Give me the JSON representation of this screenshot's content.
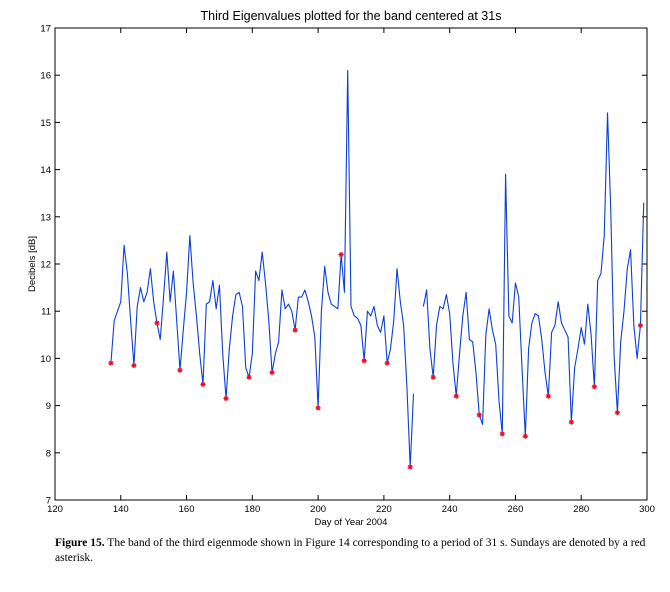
{
  "chart_data": {
    "type": "line",
    "title": "Third Eigenvalues plotted for the band centered at 31s",
    "xlabel": "Day of Year 2004",
    "ylabel": "Decibels [dB]",
    "xlim": [
      120,
      300
    ],
    "ylim": [
      7,
      17
    ],
    "xticks": [
      "120",
      "140",
      "160",
      "180",
      "200",
      "220",
      "240",
      "260",
      "280",
      "300"
    ],
    "yticks": [
      "7",
      "8",
      "9",
      "10",
      "11",
      "12",
      "13",
      "14",
      "15",
      "16",
      "17"
    ],
    "grid": false,
    "line_color": "#0b3fd6",
    "marker_color": "#e8102a",
    "series": [
      {
        "values_x": [
          137,
          138,
          140,
          141,
          142,
          143,
          144,
          145,
          146,
          147,
          148,
          149,
          150,
          151,
          152,
          153,
          154,
          155,
          156,
          157,
          158,
          159,
          160,
          161,
          162,
          163,
          164,
          165,
          166,
          167,
          168,
          169,
          170,
          171,
          172,
          173,
          174,
          175,
          176,
          177,
          178,
          179,
          180,
          181,
          182,
          183,
          184,
          185,
          186,
          187,
          188,
          189,
          190,
          191,
          192,
          193,
          194,
          195,
          196,
          197,
          198,
          199,
          200,
          201,
          202,
          203,
          204,
          205,
          206,
          207,
          208,
          209,
          210,
          211,
          212,
          213,
          214,
          215,
          216,
          217,
          218,
          219,
          220,
          221,
          222,
          223,
          224,
          225,
          226,
          227,
          228,
          229
        ],
        "values_y": [
          9.9,
          10.8,
          11.2,
          12.4,
          11.8,
          10.8,
          9.85,
          11.1,
          11.5,
          11.2,
          11.4,
          11.9,
          11.2,
          10.75,
          10.4,
          11.3,
          12.25,
          11.2,
          11.85,
          10.8,
          9.75,
          10.6,
          11.4,
          12.6,
          11.6,
          10.9,
          10.1,
          9.45,
          11.15,
          11.2,
          11.65,
          11.05,
          11.55,
          10.1,
          9.15,
          10.2,
          10.9,
          11.35,
          11.4,
          11.1,
          9.8,
          9.6,
          10.1,
          11.85,
          11.65,
          12.25,
          11.6,
          10.8,
          9.7,
          10.1,
          10.35,
          11.45,
          11.05,
          11.15,
          11.0,
          10.6,
          11.3,
          11.3,
          11.45,
          11.2,
          10.9,
          10.45,
          8.95,
          11.0,
          11.95,
          11.4,
          11.15,
          11.1,
          11.05,
          12.2,
          11.4,
          16.1,
          11.1,
          10.9,
          10.85,
          10.7,
          9.95,
          11.0,
          10.9,
          11.1,
          10.7,
          10.55,
          10.9,
          9.9,
          10.2,
          10.8,
          11.9,
          11.2,
          10.7,
          9.4,
          7.7,
          9.25
        ]
      },
      {
        "values_x": [
          232,
          233,
          234,
          235,
          236,
          237,
          238,
          239,
          240,
          241,
          242,
          243,
          244,
          245,
          246,
          247,
          248,
          249,
          250,
          251,
          252,
          253,
          254,
          255,
          256,
          257,
          258,
          259,
          260,
          261,
          262,
          263,
          264,
          265,
          266,
          267,
          268,
          269,
          270,
          271,
          272,
          273,
          274,
          275,
          276,
          277,
          278,
          279,
          280,
          281,
          282,
          283,
          284,
          285,
          286,
          287,
          288,
          289,
          290,
          291,
          292,
          293,
          294,
          295,
          296,
          297,
          298,
          299
        ],
        "values_y": [
          11.1,
          11.45,
          10.2,
          9.6,
          10.7,
          11.1,
          11.05,
          11.35,
          10.95,
          9.9,
          9.2,
          10.1,
          10.9,
          11.4,
          10.4,
          10.35,
          9.7,
          8.8,
          8.6,
          10.5,
          11.05,
          10.6,
          10.3,
          9.1,
          8.4,
          13.9,
          10.9,
          10.75,
          11.6,
          11.3,
          9.8,
          8.35,
          10.2,
          10.75,
          10.95,
          10.9,
          10.4,
          9.7,
          9.2,
          10.55,
          10.7,
          11.2,
          10.75,
          10.6,
          10.45,
          8.65,
          9.8,
          10.2,
          10.65,
          10.3,
          11.15,
          10.5,
          9.4,
          11.65,
          11.8,
          12.6,
          15.2,
          13.1,
          10.05,
          8.85,
          10.35,
          11.0,
          11.9,
          12.3,
          10.7,
          10.0,
          10.7,
          13.3
        ]
      }
    ],
    "sundays": {
      "x": [
        137,
        144,
        151,
        158,
        165,
        172,
        179,
        186,
        193,
        200,
        207,
        214,
        221,
        228,
        235,
        242,
        249,
        256,
        263,
        270,
        277,
        284,
        291,
        298
      ],
      "y": [
        9.9,
        9.85,
        10.75,
        9.75,
        9.45,
        9.15,
        9.6,
        9.7,
        10.6,
        8.95,
        12.2,
        9.95,
        9.9,
        7.7,
        9.6,
        9.2,
        8.8,
        8.4,
        8.35,
        9.2,
        8.65,
        9.4,
        8.85,
        10.7
      ]
    }
  },
  "caption": {
    "label": "Figure 15.",
    "text": "  The band of the third eigenmode shown in Figure 14 corresponding to a period of 31 s. Sundays are denoted by a red asterisk."
  }
}
